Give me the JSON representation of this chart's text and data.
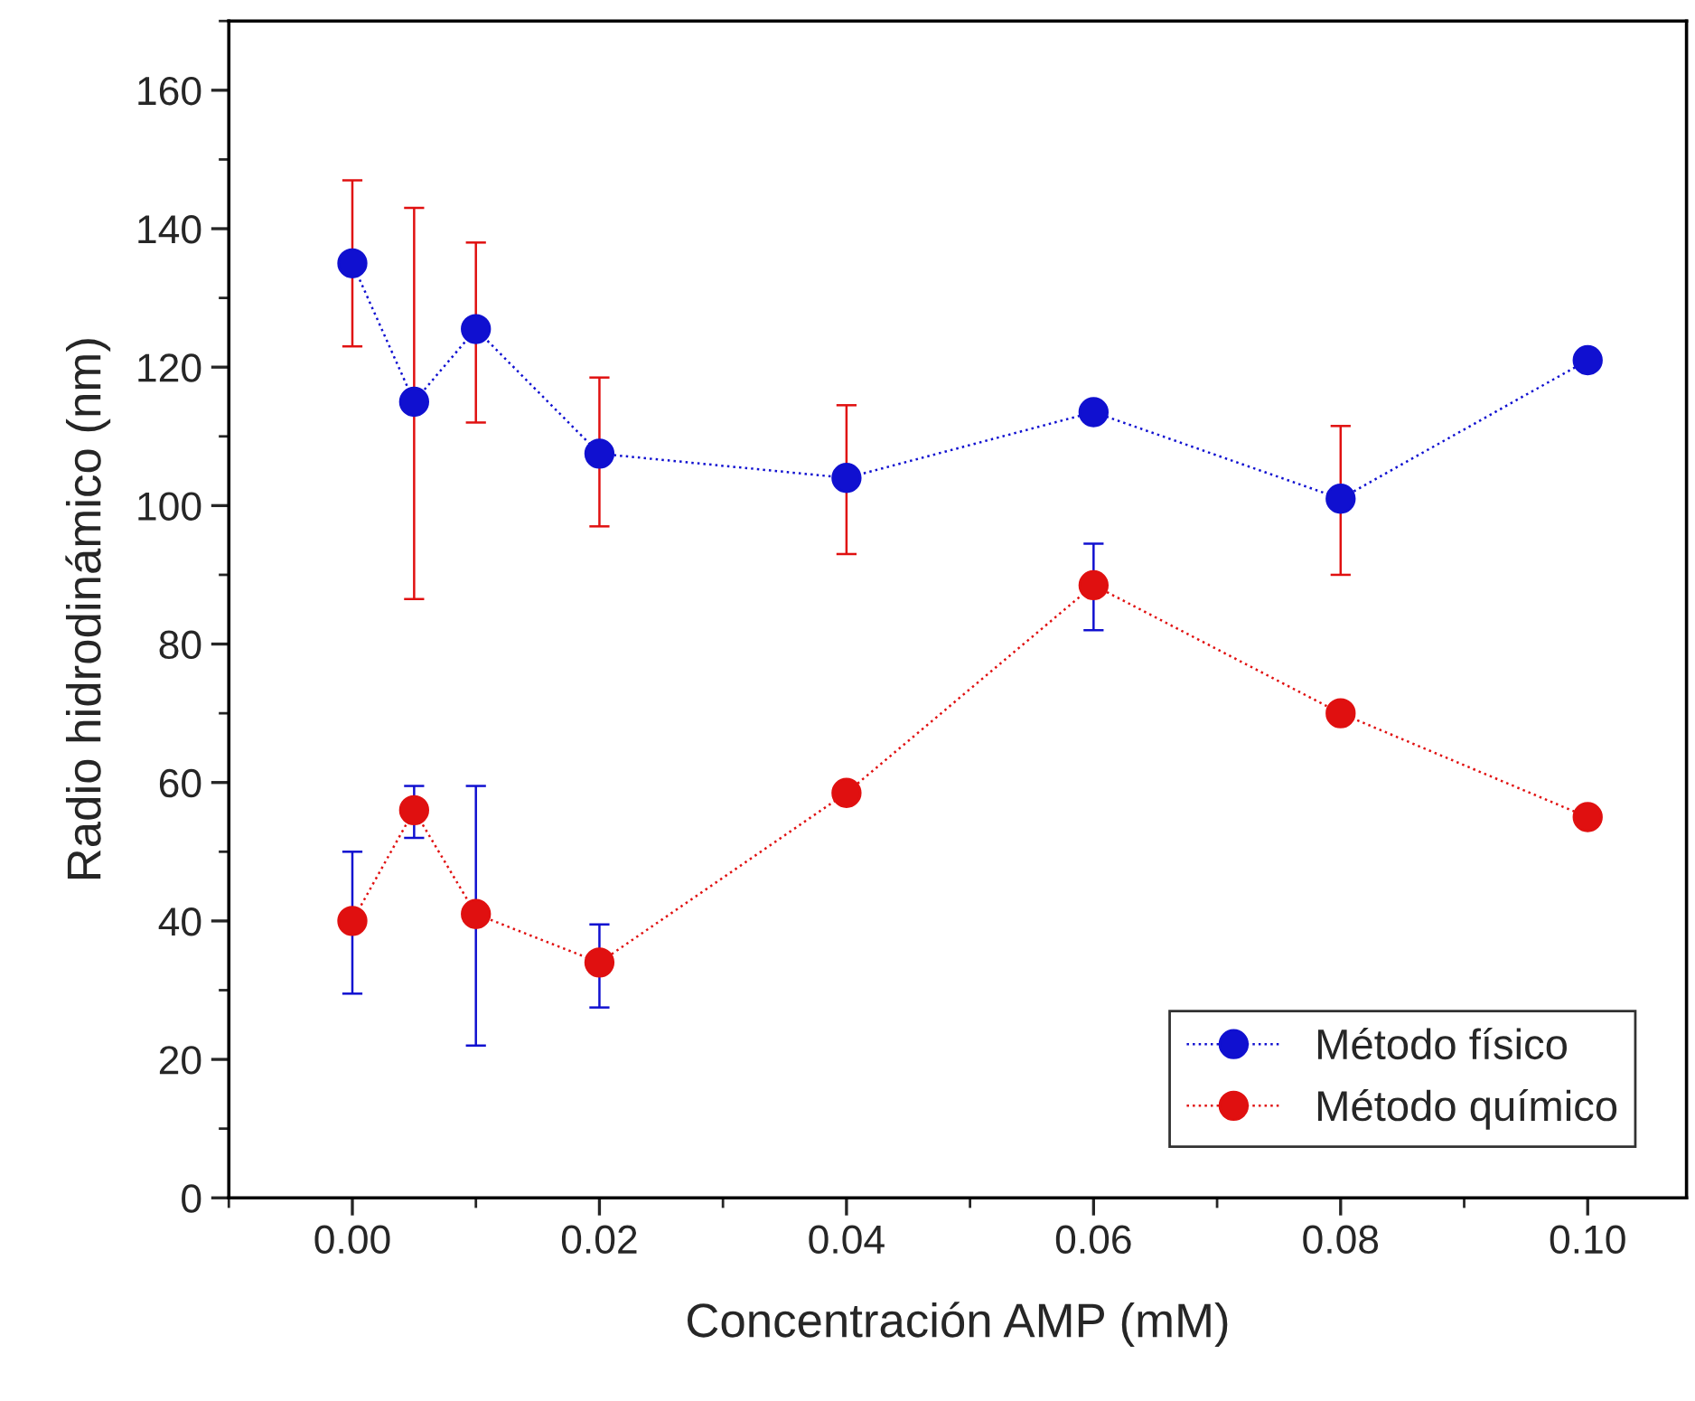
{
  "chart_data": {
    "type": "line",
    "xlabel": "Concentración AMP (mM)",
    "ylabel": "Radio hidrodinámico (nm)",
    "x": [
      0,
      0.005,
      0.01,
      0.02,
      0.04,
      0.06,
      0.08,
      0.1
    ],
    "series": [
      {
        "name": "Método físico",
        "color": "#1010d0",
        "values": [
          135,
          115,
          125.5,
          107.5,
          104,
          113.5,
          101,
          121
        ],
        "errors": [
          [
            123,
            147
          ],
          [
            86.5,
            143
          ],
          [
            112,
            138
          ],
          [
            97,
            118.5
          ],
          [
            93,
            114.5
          ],
          null,
          [
            90,
            111.5
          ],
          null
        ]
      },
      {
        "name": "Método químico",
        "color": "#e01010",
        "values": [
          40,
          56,
          41,
          34,
          58.5,
          88.5,
          70,
          55
        ],
        "errors": [
          [
            29.5,
            50
          ],
          [
            52,
            59.5
          ],
          [
            22,
            59.5
          ],
          [
            27.5,
            39.5
          ],
          null,
          [
            82,
            94.5
          ],
          null,
          null
        ]
      }
    ],
    "xlim": [
      -0.01,
      0.108
    ],
    "ylim": [
      0,
      170
    ],
    "xticks": [
      {
        "value": 0,
        "label": "0.00"
      },
      {
        "value": 0.02,
        "label": "0.02"
      },
      {
        "value": 0.04,
        "label": "0.04"
      },
      {
        "value": 0.06,
        "label": "0.06"
      },
      {
        "value": 0.08,
        "label": "0.08"
      },
      {
        "value": 0.1,
        "label": "0.10"
      }
    ],
    "yticks": [
      0,
      20,
      40,
      60,
      80,
      100,
      120,
      140,
      160
    ],
    "grid": false,
    "legend": "bottom right",
    "marker": "circle",
    "line_style": "dotted"
  }
}
